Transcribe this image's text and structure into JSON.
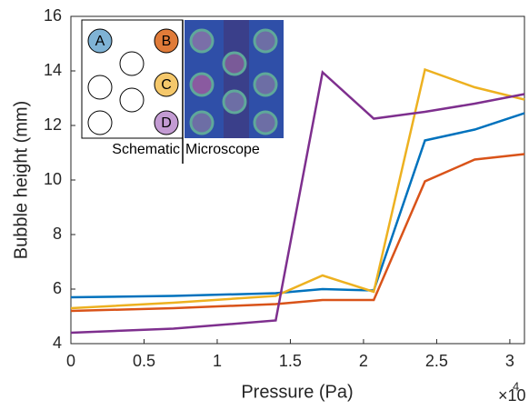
{
  "chart_data": {
    "type": "line",
    "x_label": "Pressure (Pa)",
    "y_label": "Bubble height (mm)",
    "x_multiplier": "×10",
    "x_multiplier_exponent": "4",
    "x": [
      0,
      7000,
      14000,
      17200,
      20700,
      24200,
      27600,
      31000
    ],
    "series": [
      {
        "color": "#0072bd",
        "values": [
          5.7,
          5.75,
          5.85,
          6.0,
          5.95,
          11.45,
          11.85,
          12.45
        ]
      },
      {
        "color": "#d95319",
        "values": [
          5.2,
          5.3,
          5.45,
          5.6,
          5.6,
          9.95,
          10.75,
          10.95
        ]
      },
      {
        "color": "#edb120",
        "values": [
          5.3,
          5.5,
          5.75,
          6.5,
          5.9,
          14.05,
          13.4,
          12.95
        ]
      },
      {
        "color": "#7e2f8e",
        "values": [
          4.4,
          4.55,
          4.85,
          13.95,
          12.25,
          12.5,
          12.8,
          13.15
        ]
      }
    ],
    "xlim": [
      0,
      31000
    ],
    "xticks": [
      0,
      {
        "value": 5000,
        "label": "0.5"
      },
      {
        "value": 10000,
        "label": "1"
      },
      {
        "value": 15000,
        "label": "1.5"
      },
      {
        "value": 20000,
        "label": "2"
      },
      {
        "value": 25000,
        "label": "2.5"
      },
      {
        "value": 30000,
        "label": "3"
      }
    ],
    "ylim": [
      4,
      16
    ],
    "yticks": [
      4,
      6,
      8,
      10,
      12,
      14,
      16
    ],
    "inset": {
      "circle_labels": [
        "A",
        "B",
        "C",
        "D"
      ],
      "schematic_label": "Schematic",
      "microscope_label": "Microscope"
    }
  }
}
